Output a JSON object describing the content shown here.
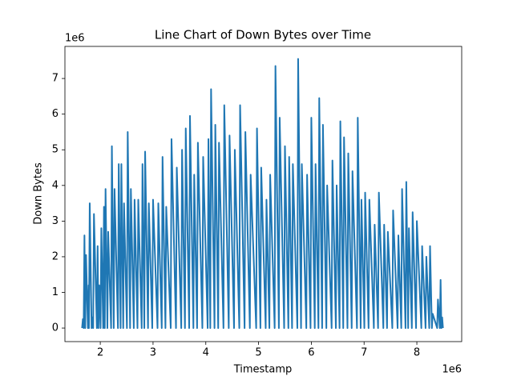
{
  "chart_data": {
    "type": "line",
    "title": "Line Chart of Down Bytes over Time",
    "x_label": "Timestamp",
    "y_label": "Down Bytes",
    "x_offset_label": "1e6",
    "y_offset_label": "1e6",
    "color": "#1f77b4",
    "xlim": [
      1.33,
      8.85
    ],
    "ylim": [
      -0.38,
      7.9
    ],
    "xticks": [
      2,
      3,
      4,
      5,
      6,
      7,
      8
    ],
    "yticks": [
      0,
      1,
      2,
      3,
      4,
      5,
      6,
      7
    ],
    "x": [
      1.655,
      1.67,
      1.685,
      1.7,
      1.715,
      1.73,
      1.765,
      1.78,
      1.785,
      1.8,
      1.835,
      1.85,
      1.865,
      1.88,
      1.935,
      1.95,
      1.965,
      1.98,
      2.005,
      2.02,
      2.055,
      2.07,
      2.085,
      2.1,
      2.135,
      2.15,
      2.205,
      2.22,
      2.255,
      2.27,
      2.335,
      2.35,
      2.385,
      2.4,
      2.435,
      2.45,
      2.505,
      2.52,
      2.565,
      2.58,
      2.635,
      2.65,
      2.705,
      2.72,
      2.785,
      2.8,
      2.835,
      2.85,
      2.905,
      2.92,
      2.985,
      3.0,
      3.085,
      3.1,
      3.165,
      3.18,
      3.235,
      3.25,
      3.335,
      3.35,
      3.435,
      3.45,
      3.535,
      3.55,
      3.605,
      3.62,
      3.685,
      3.7,
      3.765,
      3.78,
      3.835,
      3.85,
      3.935,
      3.95,
      4.035,
      4.05,
      4.085,
      4.1,
      4.165,
      4.18,
      4.235,
      4.25,
      4.335,
      4.35,
      4.435,
      4.45,
      4.535,
      4.55,
      4.635,
      4.65,
      4.735,
      4.75,
      4.835,
      4.85,
      4.955,
      4.97,
      5.035,
      5.05,
      5.135,
      5.15,
      5.205,
      5.22,
      5.305,
      5.32,
      5.385,
      5.4,
      5.485,
      5.5,
      5.565,
      5.58,
      5.635,
      5.65,
      5.735,
      5.75,
      5.805,
      5.82,
      5.905,
      5.92,
      5.985,
      6.0,
      6.065,
      6.08,
      6.135,
      6.15,
      6.205,
      6.22,
      6.285,
      6.3,
      6.385,
      6.4,
      6.465,
      6.48,
      6.535,
      6.55,
      6.605,
      6.62,
      6.685,
      6.7,
      6.765,
      6.78,
      6.865,
      6.88,
      6.935,
      6.95,
      7.005,
      7.02,
      7.085,
      7.1,
      7.185,
      7.2,
      7.265,
      7.28,
      7.365,
      7.38,
      7.435,
      7.45,
      7.535,
      7.55,
      7.635,
      7.65,
      7.705,
      7.72,
      7.785,
      7.8,
      7.835,
      7.85,
      7.905,
      7.92,
      7.985,
      8.0,
      8.085,
      8.1,
      8.165,
      8.18,
      8.235,
      8.25,
      8.285,
      8.3,
      8.385,
      8.4,
      8.435,
      8.45,
      8.465,
      8.48,
      8.495
    ],
    "values": [
      0,
      0.25,
      0,
      2.6,
      0,
      2.05,
      0,
      1.2,
      0,
      3.5,
      0,
      0.3,
      0,
      3.2,
      0,
      2.3,
      0,
      1.2,
      0,
      2.8,
      0,
      3.4,
      0,
      3.9,
      0,
      2.7,
      0,
      5.1,
      0,
      3.9,
      0,
      4.6,
      0,
      4.6,
      0,
      3.5,
      0,
      5.5,
      0,
      3.9,
      0,
      3.6,
      0,
      3.6,
      0,
      4.6,
      0,
      4.95,
      0,
      3.5,
      0,
      3.6,
      0,
      3.5,
      0,
      4.8,
      0,
      3.4,
      0,
      5.3,
      0,
      4.5,
      0,
      5.0,
      0,
      5.6,
      0,
      5.95,
      0,
      4.3,
      0,
      5.2,
      0,
      4.8,
      0,
      5.3,
      0,
      6.7,
      0,
      5.7,
      0,
      5.2,
      0,
      6.25,
      0,
      5.4,
      0,
      5.0,
      0,
      6.25,
      0,
      5.5,
      0,
      4.3,
      0,
      5.6,
      0,
      4.5,
      0,
      3.6,
      0,
      4.3,
      0,
      7.35,
      0,
      5.9,
      0,
      5.1,
      0,
      4.8,
      0,
      4.6,
      0,
      7.55,
      0,
      4.6,
      0,
      4.3,
      0,
      5.9,
      0,
      4.6,
      0,
      6.45,
      0,
      5.7,
      0,
      4.0,
      0,
      4.7,
      0,
      4.0,
      0,
      5.8,
      0,
      5.35,
      0,
      4.9,
      0,
      4.4,
      0,
      5.9,
      0,
      3.6,
      0,
      3.8,
      0,
      3.6,
      0,
      2.9,
      0,
      3.8,
      0,
      2.9,
      0,
      2.7,
      0,
      3.3,
      0,
      2.6,
      0,
      3.9,
      0,
      4.1,
      0,
      2.8,
      0,
      3.25,
      0,
      3.0,
      0,
      2.3,
      0,
      2.0,
      0,
      2.3,
      0,
      0.4,
      0,
      0.8,
      0,
      1.35,
      0,
      0.3,
      0
    ]
  }
}
